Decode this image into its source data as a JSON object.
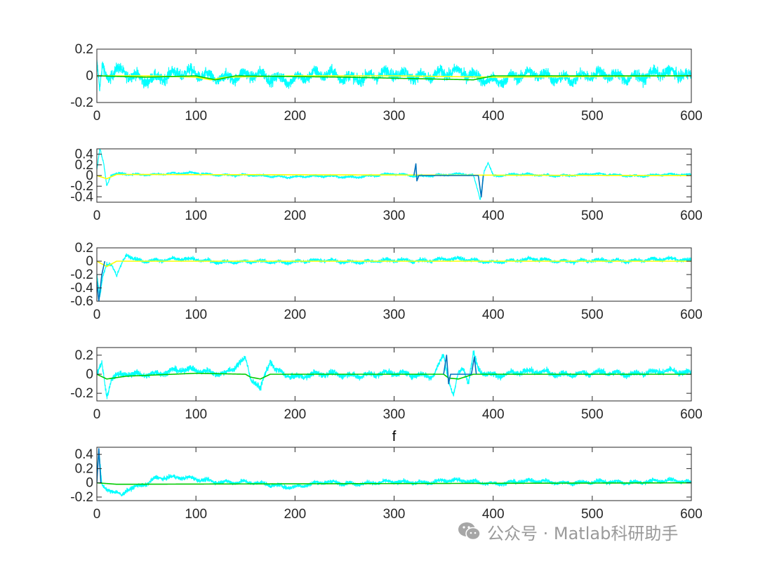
{
  "watermark": {
    "text": "公众号 · Matlab科研助手"
  },
  "colors": {
    "cyan": "#00ffff",
    "yellow": "#ffff00",
    "green": "#00cc00",
    "blue": "#0072bd",
    "axis": "#262626"
  },
  "chart_data": [
    {
      "type": "line",
      "title": "",
      "xlim": [
        0,
        600
      ],
      "ylim": [
        -0.2,
        0.2
      ],
      "xticks": [
        "0",
        "100",
        "200",
        "300",
        "400",
        "500",
        "600"
      ],
      "yticks": [
        {
          "v": 0.2,
          "t": "0.2"
        },
        {
          "v": 0,
          "t": "0"
        },
        {
          "v": -0.2,
          "t": "-0.2"
        }
      ],
      "series": [
        {
          "color": "cyan",
          "trend": [
            [
              0,
              0.1
            ],
            [
              3,
              -0.12
            ],
            [
              6,
              0.06
            ],
            [
              10,
              -0.03
            ],
            [
              20,
              0.02
            ],
            [
              50,
              -0.01
            ],
            [
              100,
              0.01
            ],
            [
              150,
              -0.01
            ],
            [
              200,
              -0.01
            ],
            [
              250,
              0.0
            ],
            [
              300,
              0.0
            ],
            [
              350,
              0.02
            ],
            [
              400,
              -0.02
            ],
            [
              450,
              0.0
            ],
            [
              500,
              -0.01
            ],
            [
              550,
              0.01
            ],
            [
              600,
              0.0
            ]
          ],
          "noise": 0.07
        },
        {
          "color": "yellow",
          "trend": [
            [
              0,
              0
            ],
            [
              50,
              0
            ],
            [
              100,
              -0.01
            ],
            [
              115,
              -0.03
            ],
            [
              130,
              -0.01
            ],
            [
              200,
              0
            ],
            [
              300,
              0
            ],
            [
              400,
              -0.01
            ],
            [
              600,
              0
            ]
          ],
          "noise": 0.0
        },
        {
          "color": "green",
          "trend": [
            [
              0,
              0
            ],
            [
              50,
              -0.01
            ],
            [
              100,
              0.0
            ],
            [
              120,
              -0.03
            ],
            [
              140,
              0.0
            ],
            [
              250,
              -0.01
            ],
            [
              380,
              -0.03
            ],
            [
              400,
              0.0
            ],
            [
              600,
              0
            ]
          ],
          "noise": 0.0
        }
      ]
    },
    {
      "type": "line",
      "title": "",
      "xlim": [
        0,
        600
      ],
      "ylim": [
        -0.5,
        0.5
      ],
      "xticks": [
        "0",
        "100",
        "200",
        "300",
        "400",
        "500",
        "600"
      ],
      "yticks": [
        {
          "v": 0.4,
          "t": "0.4"
        },
        {
          "v": 0.2,
          "t": "0.2"
        },
        {
          "v": 0,
          "t": "0"
        },
        {
          "v": -0.2,
          "t": "-0.2"
        },
        {
          "v": -0.4,
          "t": "-0.4"
        }
      ],
      "series": [
        {
          "color": "blue",
          "trend": [
            [
              320,
              0
            ],
            [
              322,
              0.22
            ],
            [
              323,
              -0.1
            ],
            [
              325,
              0.0
            ],
            [
              385,
              0
            ],
            [
              388,
              -0.4
            ],
            [
              390,
              0.0
            ]
          ],
          "noise": 0.0
        },
        {
          "color": "cyan",
          "trend": [
            [
              0,
              0.1
            ],
            [
              3,
              0.5
            ],
            [
              7,
              0.2
            ],
            [
              10,
              -0.2
            ],
            [
              14,
              0.0
            ],
            [
              20,
              0.02
            ],
            [
              100,
              0.04
            ],
            [
              150,
              0.0
            ],
            [
              200,
              -0.02
            ],
            [
              260,
              -0.02
            ],
            [
              300,
              0.02
            ],
            [
              320,
              0.0
            ],
            [
              370,
              0.02
            ],
            [
              380,
              0.0
            ],
            [
              387,
              -0.45
            ],
            [
              391,
              0.1
            ],
            [
              395,
              0.25
            ],
            [
              400,
              0.0
            ],
            [
              420,
              0.02
            ],
            [
              450,
              0.0
            ],
            [
              500,
              0.02
            ],
            [
              550,
              0.0
            ],
            [
              600,
              0.02
            ]
          ],
          "noise": 0.035
        },
        {
          "color": "yellow",
          "trend": [
            [
              0,
              0
            ],
            [
              10,
              -0.06
            ],
            [
              20,
              0.02
            ],
            [
              600,
              0
            ]
          ],
          "noise": 0.0
        }
      ]
    },
    {
      "type": "line",
      "title": "",
      "xlim": [
        0,
        600
      ],
      "ylim": [
        -0.6,
        0.2
      ],
      "xticks": [
        "0",
        "100",
        "200",
        "300",
        "400",
        "500",
        "600"
      ],
      "yticks": [
        {
          "v": 0.2,
          "t": "0.2"
        },
        {
          "v": 0,
          "t": "0"
        },
        {
          "v": -0.2,
          "t": "-0.2"
        },
        {
          "v": -0.4,
          "t": "-0.4"
        },
        {
          "v": -0.6,
          "t": "-0.6"
        }
      ],
      "series": [
        {
          "color": "blue",
          "trend": [
            [
              0,
              -0.3
            ],
            [
              2,
              -0.6
            ],
            [
              5,
              -0.2
            ],
            [
              8,
              0.0
            ]
          ],
          "noise": 0.0
        },
        {
          "color": "cyan",
          "trend": [
            [
              0,
              -0.2
            ],
            [
              3,
              -0.55
            ],
            [
              6,
              -0.25
            ],
            [
              10,
              -0.05
            ],
            [
              15,
              -0.05
            ],
            [
              20,
              -0.25
            ],
            [
              25,
              -0.05
            ],
            [
              30,
              0.1
            ],
            [
              40,
              0.02
            ],
            [
              100,
              0.02
            ],
            [
              150,
              -0.02
            ],
            [
              200,
              0.0
            ],
            [
              300,
              0.0
            ],
            [
              350,
              0.03
            ],
            [
              400,
              0.0
            ],
            [
              450,
              0.02
            ],
            [
              500,
              0.0
            ],
            [
              550,
              0.02
            ],
            [
              600,
              0.02
            ]
          ],
          "noise": 0.045
        },
        {
          "color": "yellow",
          "trend": [
            [
              0,
              0
            ],
            [
              10,
              -0.08
            ],
            [
              20,
              0.0
            ],
            [
              600,
              0
            ]
          ],
          "noise": 0.0
        }
      ]
    },
    {
      "type": "line",
      "title": "",
      "xlim": [
        0,
        600
      ],
      "ylim": [
        -0.28,
        0.28
      ],
      "xticks": [
        "0",
        "100",
        "200",
        "300",
        "400",
        "500",
        "600"
      ],
      "yticks": [
        {
          "v": 0.2,
          "t": "0.2"
        },
        {
          "v": 0,
          "t": "0"
        },
        {
          "v": -0.2,
          "t": "-0.2"
        }
      ],
      "series": [
        {
          "color": "blue",
          "trend": [
            [
              350,
              0
            ],
            [
              353,
              0.2
            ],
            [
              355,
              -0.1
            ],
            [
              357,
              0.0
            ],
            [
              378,
              0
            ],
            [
              381,
              0.18
            ],
            [
              383,
              0.0
            ]
          ],
          "noise": 0.0
        },
        {
          "color": "cyan",
          "trend": [
            [
              0,
              0.0
            ],
            [
              5,
              0.1
            ],
            [
              10,
              -0.25
            ],
            [
              15,
              -0.05
            ],
            [
              30,
              0.0
            ],
            [
              100,
              0.04
            ],
            [
              130,
              0.02
            ],
            [
              150,
              0.15
            ],
            [
              155,
              -0.05
            ],
            [
              160,
              -0.1
            ],
            [
              165,
              -0.18
            ],
            [
              170,
              0.0
            ],
            [
              175,
              0.15
            ],
            [
              180,
              0.05
            ],
            [
              200,
              -0.02
            ],
            [
              250,
              0.0
            ],
            [
              300,
              0.0
            ],
            [
              340,
              0.0
            ],
            [
              350,
              0.2
            ],
            [
              355,
              -0.05
            ],
            [
              360,
              -0.25
            ],
            [
              365,
              0.0
            ],
            [
              370,
              0.05
            ],
            [
              375,
              -0.1
            ],
            [
              380,
              0.22
            ],
            [
              385,
              0.05
            ],
            [
              400,
              0.0
            ],
            [
              450,
              0.02
            ],
            [
              500,
              0.0
            ],
            [
              550,
              0.02
            ],
            [
              600,
              0.02
            ]
          ],
          "noise": 0.05
        },
        {
          "color": "green",
          "trend": [
            [
              0,
              0
            ],
            [
              10,
              -0.05
            ],
            [
              30,
              -0.02
            ],
            [
              100,
              0.01
            ],
            [
              150,
              0
            ],
            [
              155,
              -0.03
            ],
            [
              165,
              -0.05
            ],
            [
              175,
              0
            ],
            [
              350,
              0
            ],
            [
              355,
              -0.04
            ],
            [
              365,
              -0.05
            ],
            [
              380,
              0.0
            ],
            [
              600,
              0
            ]
          ],
          "noise": 0.0
        }
      ]
    },
    {
      "type": "line",
      "title": "f",
      "xlim": [
        0,
        600
      ],
      "ylim": [
        -0.25,
        0.5
      ],
      "xticks": [
        "0",
        "100",
        "200",
        "300",
        "400",
        "500",
        "600"
      ],
      "yticks": [
        {
          "v": 0.4,
          "t": "0.4"
        },
        {
          "v": 0.2,
          "t": "0.2"
        },
        {
          "v": 0,
          "t": "0"
        },
        {
          "v": -0.2,
          "t": "-0.2"
        }
      ],
      "series": [
        {
          "color": "blue",
          "trend": [
            [
              0,
              0
            ],
            [
              2,
              0.48
            ],
            [
              4,
              0.0
            ]
          ],
          "noise": 0.0
        },
        {
          "color": "cyan",
          "trend": [
            [
              0,
              0.1
            ],
            [
              2,
              0.45
            ],
            [
              5,
              -0.05
            ],
            [
              10,
              -0.1
            ],
            [
              20,
              -0.15
            ],
            [
              25,
              -0.2
            ],
            [
              30,
              -0.1
            ],
            [
              40,
              -0.05
            ],
            [
              50,
              0.0
            ],
            [
              60,
              0.08
            ],
            [
              100,
              0.05
            ],
            [
              150,
              0.0
            ],
            [
              200,
              -0.05
            ],
            [
              230,
              0.0
            ],
            [
              300,
              0.0
            ],
            [
              350,
              0.03
            ],
            [
              400,
              0.0
            ],
            [
              450,
              0.02
            ],
            [
              500,
              0.0
            ],
            [
              550,
              0.02
            ],
            [
              600,
              0.02
            ]
          ],
          "noise": 0.045
        },
        {
          "color": "green",
          "trend": [
            [
              0,
              0
            ],
            [
              20,
              -0.02
            ],
            [
              600,
              0
            ]
          ],
          "noise": 0.0
        }
      ]
    }
  ]
}
